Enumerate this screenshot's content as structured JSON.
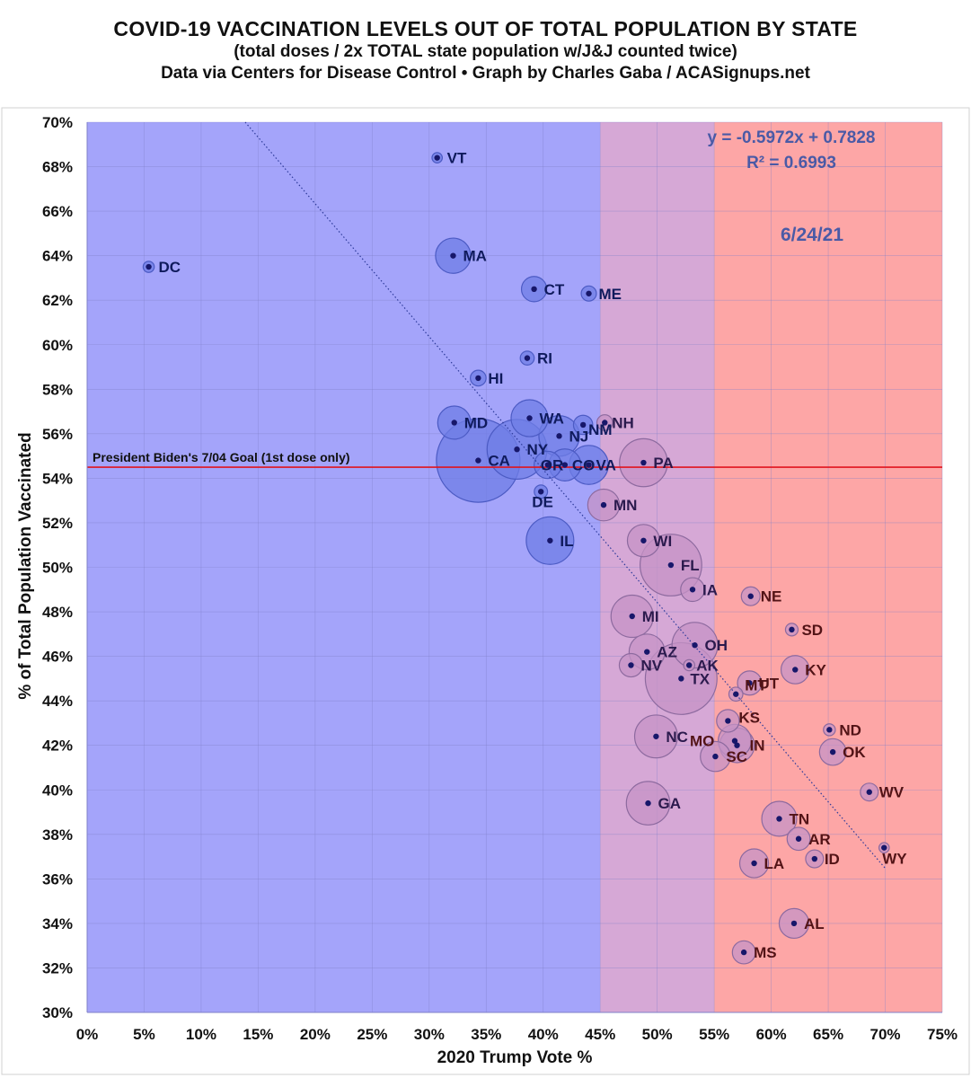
{
  "title": "COVID-19 VACCINATION LEVELS OUT OF TOTAL POPULATION BY STATE",
  "subtitle": "(total doses / 2x TOTAL state population w/J&J counted twice)",
  "credit": "Data via Centers for Disease Control • Graph by Charles Gaba / ACASignups.net",
  "chart_data": {
    "type": "scatter",
    "title": "COVID-19 VACCINATION LEVELS OUT OF TOTAL POPULATION BY STATE",
    "xlabel": "2020 Trump Vote %",
    "ylabel": "% of Total Population Vaccinated",
    "xlim": [
      0,
      75
    ],
    "ylim": [
      30,
      70
    ],
    "x_ticks": [
      "0%",
      "5%",
      "10%",
      "15%",
      "20%",
      "25%",
      "30%",
      "35%",
      "40%",
      "45%",
      "50%",
      "55%",
      "60%",
      "65%",
      "70%",
      "75%"
    ],
    "y_ticks": [
      "30%",
      "32%",
      "34%",
      "36%",
      "38%",
      "40%",
      "42%",
      "44%",
      "46%",
      "48%",
      "50%",
      "52%",
      "54%",
      "56%",
      "58%",
      "60%",
      "62%",
      "64%",
      "66%",
      "68%",
      "70%"
    ],
    "grid": true,
    "background_bands": [
      {
        "from": 0,
        "to": 45,
        "color": "#a4a4fa"
      },
      {
        "from": 45,
        "to": 55,
        "color": "#d6a8d6"
      },
      {
        "from": 55,
        "to": 75,
        "color": "#fda6a6"
      }
    ],
    "trendline": {
      "equation": "y = -0.5972x + 0.7828",
      "r_squared": "R² = 0.6993",
      "slope": -0.5972,
      "intercept": 0.7828
    },
    "goal_line": {
      "label": "President Biden's 7/04 Goal (1st dose only)",
      "y": 54.5,
      "color": "#e0141e"
    },
    "annotation": "6/24/21",
    "points": [
      {
        "label": "VT",
        "x": 30.7,
        "y": 68.4,
        "size": 0.6
      },
      {
        "label": "DC",
        "x": 5.4,
        "y": 63.5,
        "size": 0.7
      },
      {
        "label": "MA",
        "x": 32.1,
        "y": 64.0,
        "size": 7.0
      },
      {
        "label": "CT",
        "x": 39.2,
        "y": 62.5,
        "size": 3.6
      },
      {
        "label": "ME",
        "x": 44.0,
        "y": 62.3,
        "size": 1.3
      },
      {
        "label": "RI",
        "x": 38.6,
        "y": 59.4,
        "size": 1.1
      },
      {
        "label": "HI",
        "x": 34.3,
        "y": 58.5,
        "size": 1.4
      },
      {
        "label": "WA",
        "x": 38.8,
        "y": 56.7,
        "size": 7.7
      },
      {
        "label": "MD",
        "x": 32.2,
        "y": 56.5,
        "size": 6.2
      },
      {
        "label": "NM",
        "x": 43.5,
        "y": 56.4,
        "size": 2.1
      },
      {
        "label": "NH",
        "x": 45.4,
        "y": 56.5,
        "size": 1.4
      },
      {
        "label": "NJ",
        "x": 41.4,
        "y": 55.9,
        "size": 9.3
      },
      {
        "label": "NY",
        "x": 37.7,
        "y": 55.3,
        "size": 20.2
      },
      {
        "label": "CA",
        "x": 34.3,
        "y": 54.8,
        "size": 39.5
      },
      {
        "label": "CO",
        "x": 41.9,
        "y": 54.6,
        "size": 5.8
      },
      {
        "label": "OR",
        "x": 40.4,
        "y": 54.6,
        "size": 4.2
      },
      {
        "label": "VA",
        "x": 44.0,
        "y": 54.6,
        "size": 8.6
      },
      {
        "label": "PA",
        "x": 48.8,
        "y": 54.7,
        "size": 13.0
      },
      {
        "label": "DE",
        "x": 39.8,
        "y": 53.4,
        "size": 1.0
      },
      {
        "label": "MN",
        "x": 45.3,
        "y": 52.8,
        "size": 5.7
      },
      {
        "label": "IL",
        "x": 40.6,
        "y": 51.2,
        "size": 12.8
      },
      {
        "label": "WI",
        "x": 48.8,
        "y": 51.2,
        "size": 5.9
      },
      {
        "label": "FL",
        "x": 51.2,
        "y": 50.1,
        "size": 21.5
      },
      {
        "label": "IA",
        "x": 53.1,
        "y": 49.0,
        "size": 3.2
      },
      {
        "label": "NE",
        "x": 58.2,
        "y": 48.7,
        "size": 2.0
      },
      {
        "label": "MI",
        "x": 47.8,
        "y": 47.8,
        "size": 10.1
      },
      {
        "label": "SD",
        "x": 61.8,
        "y": 47.2,
        "size": 0.9
      },
      {
        "label": "OH",
        "x": 53.3,
        "y": 46.5,
        "size": 11.8
      },
      {
        "label": "AZ",
        "x": 49.1,
        "y": 46.2,
        "size": 7.2
      },
      {
        "label": "NV",
        "x": 47.7,
        "y": 45.6,
        "size": 3.1
      },
      {
        "label": "AK",
        "x": 52.8,
        "y": 45.6,
        "size": 0.7
      },
      {
        "label": "KY",
        "x": 62.1,
        "y": 45.4,
        "size": 4.5
      },
      {
        "label": "TX",
        "x": 52.1,
        "y": 45.0,
        "size": 29.1
      },
      {
        "label": "MT",
        "x": 56.9,
        "y": 44.3,
        "size": 1.1
      },
      {
        "label": "UT",
        "x": 58.1,
        "y": 44.8,
        "size": 3.3
      },
      {
        "label": "KS",
        "x": 56.2,
        "y": 43.1,
        "size": 2.9
      },
      {
        "label": "ND",
        "x": 65.1,
        "y": 42.7,
        "size": 0.8
      },
      {
        "label": "NC",
        "x": 49.9,
        "y": 42.4,
        "size": 10.4
      },
      {
        "label": "MO",
        "x": 56.8,
        "y": 42.2,
        "size": 6.2
      },
      {
        "label": "IN",
        "x": 57.0,
        "y": 42.0,
        "size": 6.8
      },
      {
        "label": "OK",
        "x": 65.4,
        "y": 41.7,
        "size": 4.0
      },
      {
        "label": "SC",
        "x": 55.1,
        "y": 41.5,
        "size": 5.1
      },
      {
        "label": "WV",
        "x": 68.6,
        "y": 39.9,
        "size": 1.8
      },
      {
        "label": "GA",
        "x": 49.2,
        "y": 39.4,
        "size": 10.7
      },
      {
        "label": "TN",
        "x": 60.7,
        "y": 38.7,
        "size": 6.9
      },
      {
        "label": "AR",
        "x": 62.4,
        "y": 37.8,
        "size": 3.0
      },
      {
        "label": "WY",
        "x": 69.9,
        "y": 37.4,
        "size": 0.6
      },
      {
        "label": "ID",
        "x": 63.8,
        "y": 36.9,
        "size": 1.8
      },
      {
        "label": "LA",
        "x": 58.5,
        "y": 36.7,
        "size": 4.7
      },
      {
        "label": "AL",
        "x": 62.0,
        "y": 34.0,
        "size": 5.0
      },
      {
        "label": "MS",
        "x": 57.6,
        "y": 32.7,
        "size": 3.0
      }
    ],
    "point_colors": {
      "dot": "#17176a",
      "dem_bubble_fill": "#6f7ee6",
      "gop_bubble_fill": "#c693c6",
      "dem_label": "#0f1a5c",
      "gop_label": "#521316",
      "swing_label": "#2b1a4d"
    }
  }
}
